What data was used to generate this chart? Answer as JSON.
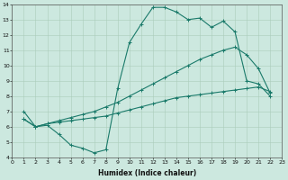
{
  "xlabel": "Humidex (Indice chaleur)",
  "bg_color": "#cce8df",
  "grid_color": "#aaccbb",
  "line_color": "#1a7a6a",
  "line1_x": [
    1,
    2,
    3,
    4,
    5,
    6,
    7,
    8,
    9,
    10,
    11,
    12,
    13,
    14,
    15,
    16,
    17,
    18,
    19,
    20,
    21,
    22
  ],
  "line1_y": [
    7.0,
    6.0,
    6.1,
    5.5,
    4.8,
    4.6,
    4.3,
    4.5,
    8.5,
    11.5,
    12.7,
    13.8,
    13.8,
    13.5,
    13.0,
    13.1,
    12.5,
    12.9,
    12.2,
    9.0,
    8.8,
    8.0
  ],
  "line2_x": [
    1,
    2,
    3,
    4,
    5,
    6,
    7,
    8,
    9,
    10,
    11,
    12,
    13,
    14,
    15,
    16,
    17,
    18,
    19,
    20,
    21,
    22
  ],
  "line2_y": [
    6.5,
    6.0,
    6.2,
    6.3,
    6.4,
    6.5,
    6.6,
    6.7,
    6.9,
    7.1,
    7.3,
    7.5,
    7.7,
    7.9,
    8.0,
    8.1,
    8.2,
    8.3,
    8.4,
    8.5,
    8.6,
    8.3
  ],
  "line3_x": [
    1,
    2,
    3,
    4,
    5,
    6,
    7,
    8,
    9,
    10,
    11,
    12,
    13,
    14,
    15,
    16,
    17,
    18,
    19,
    20,
    21,
    22
  ],
  "line3_y": [
    6.5,
    6.0,
    6.2,
    6.4,
    6.6,
    6.8,
    7.0,
    7.3,
    7.6,
    8.0,
    8.4,
    8.8,
    9.2,
    9.6,
    10.0,
    10.4,
    10.7,
    11.0,
    11.2,
    10.7,
    9.8,
    8.2
  ],
  "xlim": [
    0,
    23
  ],
  "ylim": [
    4,
    14
  ],
  "xticks": [
    0,
    1,
    2,
    3,
    4,
    5,
    6,
    7,
    8,
    9,
    10,
    11,
    12,
    13,
    14,
    15,
    16,
    17,
    18,
    19,
    20,
    21,
    22,
    23
  ],
  "yticks": [
    4,
    5,
    6,
    7,
    8,
    9,
    10,
    11,
    12,
    13,
    14
  ],
  "tick_fontsize": 4.5,
  "label_fontsize": 5.5,
  "lw": 0.8,
  "marker_size": 3.0
}
